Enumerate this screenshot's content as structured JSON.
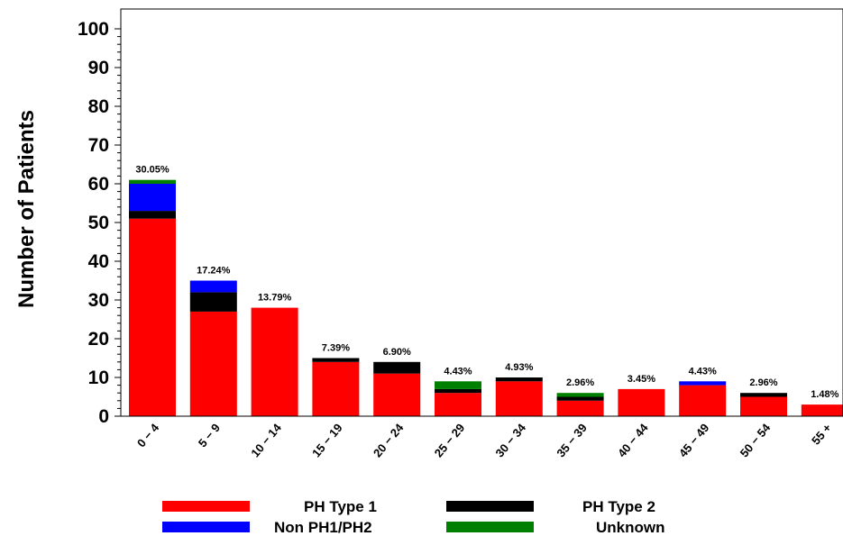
{
  "chart_data": {
    "type": "bar",
    "stacked": true,
    "ylabel": "Number of Patients",
    "xlabel": "",
    "ylim": [
      0,
      100
    ],
    "yticks": [
      0,
      10,
      20,
      30,
      40,
      50,
      60,
      70,
      80,
      90,
      100
    ],
    "categories": [
      "0 − 4",
      "5 − 9",
      "10 − 14",
      "15 − 19",
      "20 − 24",
      "25 − 29",
      "30 − 34",
      "35 − 39",
      "40 − 44",
      "45 − 49",
      "50 − 54",
      "55 +"
    ],
    "series": [
      {
        "name": "PH Type 1",
        "color": "#ff0000",
        "values": [
          51,
          27,
          28,
          14,
          11,
          6,
          9,
          4,
          7,
          8,
          5,
          3
        ]
      },
      {
        "name": "PH Type 2",
        "color": "#000000",
        "values": [
          2,
          5,
          0,
          1,
          3,
          1,
          1,
          1,
          0,
          0,
          1,
          0
        ]
      },
      {
        "name": "Non PH1/PH2",
        "color": "#0000ff",
        "values": [
          7,
          3,
          0,
          0,
          0,
          0,
          0,
          0,
          0,
          1,
          0,
          0
        ]
      },
      {
        "name": "Unknown",
        "color": "#008000",
        "values": [
          1,
          0,
          0,
          0,
          0,
          2,
          0,
          1,
          0,
          0,
          0,
          0
        ]
      }
    ],
    "bar_labels": [
      "30.05%",
      "17.24%",
      "13.79%",
      "7.39%",
      "6.90%",
      "4.43%",
      "4.93%",
      "2.96%",
      "3.45%",
      "4.43%",
      "2.96%",
      "1.48%"
    ],
    "grid": false,
    "legend_position": "bottom"
  }
}
